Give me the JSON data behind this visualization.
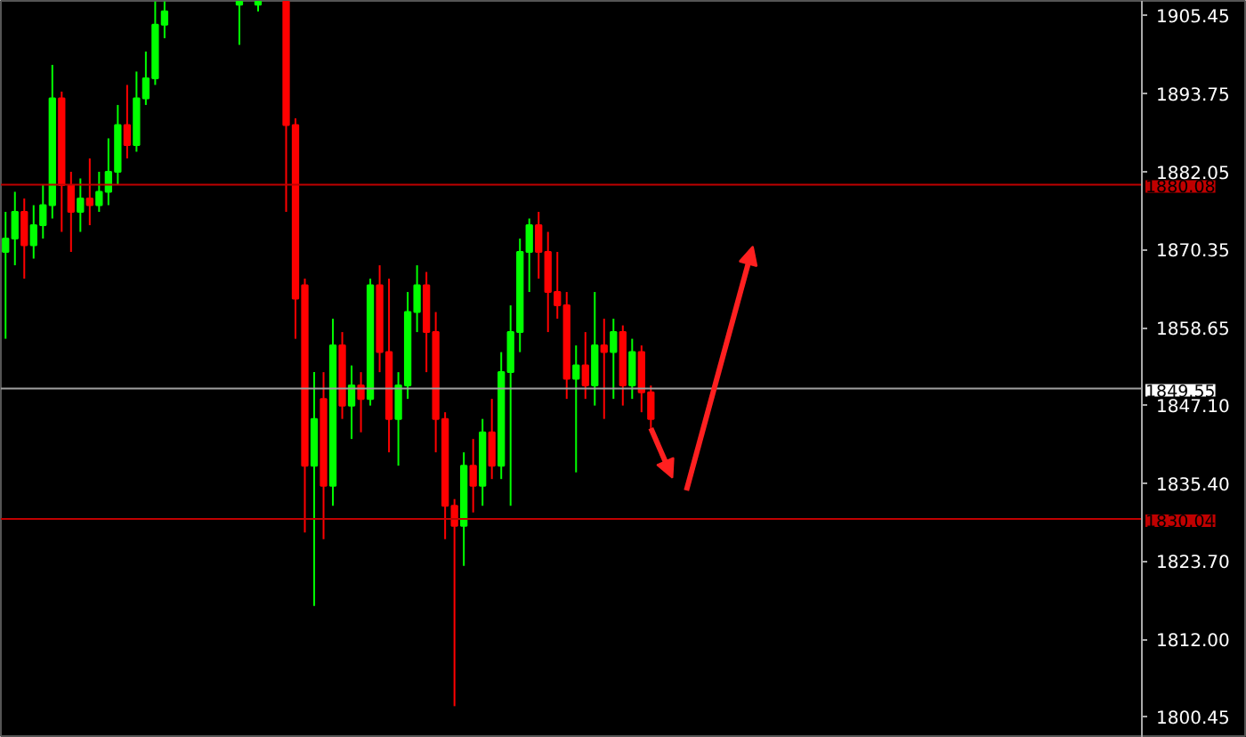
{
  "chart_data": {
    "type": "candlestick",
    "categories": [
      null,
      null,
      null,
      null,
      null,
      null,
      null,
      null,
      null,
      null,
      null,
      null,
      null,
      null,
      null,
      null,
      null,
      null,
      null,
      null,
      null,
      null,
      null,
      null,
      null,
      null,
      null,
      null,
      null,
      null,
      null,
      null,
      null,
      null,
      null,
      null,
      null,
      null,
      null,
      null,
      null,
      null,
      null,
      null,
      null,
      null,
      null,
      null,
      null,
      null,
      null,
      null,
      null,
      null,
      null,
      null,
      null,
      null,
      null,
      null,
      null,
      null,
      null,
      null,
      null,
      null,
      null,
      null,
      null,
      null,
      null,
      null,
      null,
      null,
      null,
      null,
      null,
      null,
      null,
      null,
      null,
      null,
      null,
      null,
      null,
      null,
      null,
      null,
      null,
      null,
      null,
      null,
      null,
      null,
      null,
      null,
      null,
      null,
      null,
      null,
      null,
      null,
      null,
      null,
      null,
      null,
      null,
      null,
      null,
      null,
      null,
      null,
      null,
      null,
      null,
      null,
      null,
      null,
      null,
      null,
      null,
      null
    ],
    "ohlc": [
      [
        1870,
        1876,
        1857,
        1872
      ],
      [
        1872,
        1879,
        1868,
        1876
      ],
      [
        1876,
        1878,
        1866,
        1871
      ],
      [
        1871,
        1877,
        1869,
        1874
      ],
      [
        1874,
        1880,
        1872,
        1877
      ],
      [
        1877,
        1898,
        1875,
        1893
      ],
      [
        1893,
        1894,
        1873,
        1880
      ],
      [
        1880,
        1882,
        1870,
        1876
      ],
      [
        1876,
        1881,
        1873,
        1878
      ],
      [
        1878,
        1884,
        1874,
        1877
      ],
      [
        1877,
        1882,
        1876,
        1879
      ],
      [
        1879,
        1887,
        1877,
        1882
      ],
      [
        1882,
        1892,
        1880,
        1889
      ],
      [
        1889,
        1895,
        1884,
        1886
      ],
      [
        1886,
        1897,
        1885,
        1893
      ],
      [
        1893,
        1900,
        1892,
        1896
      ],
      [
        1896,
        1907.5,
        1895,
        1904
      ],
      [
        1904,
        1907.5,
        1902,
        1906
      ],
      null,
      null,
      null,
      null,
      null,
      null,
      null,
      [
        1907,
        1907.5,
        1901,
        1907.5
      ],
      null,
      [
        1907,
        1907.5,
        1906,
        1907.5
      ],
      null,
      null,
      [
        1907.5,
        1907.5,
        1876,
        1889
      ],
      [
        1889,
        1890,
        1857,
        1863
      ],
      [
        1865,
        1866,
        1828,
        1838
      ],
      [
        1838,
        1852,
        1817,
        1845
      ],
      [
        1848,
        1852,
        1827,
        1835
      ],
      [
        1835,
        1860,
        1832,
        1856
      ],
      [
        1856,
        1858,
        1845,
        1847
      ],
      [
        1847,
        1853,
        1842,
        1850
      ],
      [
        1850,
        1852,
        1843,
        1848
      ],
      [
        1848,
        1866,
        1847,
        1865
      ],
      [
        1865,
        1868,
        1852,
        1855
      ],
      [
        1855,
        1866,
        1840,
        1845
      ],
      [
        1845,
        1852,
        1838,
        1850
      ],
      [
        1850,
        1864,
        1848,
        1861
      ],
      [
        1861,
        1868,
        1858,
        1865
      ],
      [
        1865,
        1867,
        1852,
        1858
      ],
      [
        1858,
        1861,
        1840,
        1845
      ],
      [
        1845,
        1846,
        1827,
        1832
      ],
      [
        1832,
        1833,
        1802,
        1829
      ],
      [
        1829,
        1840,
        1823,
        1838
      ],
      [
        1838,
        1842,
        1831,
        1835
      ],
      [
        1835,
        1845,
        1832,
        1843
      ],
      [
        1843,
        1848,
        1836,
        1838
      ],
      [
        1838,
        1855,
        1836,
        1852
      ],
      [
        1852,
        1862,
        1832,
        1858
      ],
      [
        1858,
        1872,
        1855,
        1870
      ],
      [
        1870,
        1875,
        1864,
        1874
      ],
      [
        1874,
        1876,
        1866,
        1870
      ],
      [
        1870,
        1873,
        1858,
        1864
      ],
      [
        1864,
        1870,
        1860,
        1862
      ],
      [
        1862,
        1864,
        1848,
        1851
      ],
      [
        1851,
        1856,
        1837,
        1853
      ],
      [
        1853,
        1858,
        1848,
        1850
      ],
      [
        1850,
        1864,
        1847,
        1856
      ],
      [
        1856,
        1860,
        1845,
        1855
      ],
      [
        1855,
        1860,
        1848,
        1858
      ],
      [
        1858,
        1859,
        1847,
        1850
      ],
      [
        1850,
        1857,
        1848,
        1855
      ],
      [
        1855,
        1856,
        1846,
        1849
      ],
      [
        1849,
        1850,
        1843,
        1845
      ],
      null,
      null,
      null,
      null,
      null,
      null,
      null,
      null,
      null,
      null,
      null,
      null,
      null,
      null,
      null,
      null,
      null,
      null,
      null,
      null,
      null,
      null,
      null,
      null,
      null,
      null,
      null,
      null,
      null,
      null,
      null,
      null,
      null,
      null,
      null,
      null,
      null,
      null,
      null,
      null,
      null,
      null,
      null,
      null,
      null,
      null,
      null,
      null,
      null,
      null,
      null,
      null
    ],
    "colors": [
      "#00ff00",
      "#00ff00",
      "#ff0000",
      "#00ff00",
      "#00ff00",
      "#00ff00",
      "#ff0000",
      "#ff0000",
      "#00ff00",
      "#ff0000",
      "#00ff00",
      "#00ff00",
      "#00ff00",
      "#ff0000",
      "#00ff00",
      "#00ff00",
      "#00ff00",
      "#00ff00",
      null,
      null,
      null,
      null,
      null,
      null,
      null,
      "#00ff00",
      null,
      "#00ff00",
      null,
      null,
      "#ff0000",
      "#ff0000",
      "#ff0000",
      "#00ff00",
      "#ff0000",
      "#00ff00",
      "#ff0000",
      "#00ff00",
      "#ff0000",
      "#00ff00",
      "#ff0000",
      "#ff0000",
      "#00ff00",
      "#00ff00",
      "#00ff00",
      "#ff0000",
      "#ff0000",
      "#ff0000",
      "#ff0000",
      "#00ff00",
      "#ff0000",
      "#00ff00",
      "#ff0000",
      "#00ff00",
      "#00ff00",
      "#00ff00",
      "#00ff00",
      "#ff0000",
      "#ff0000",
      "#ff0000",
      "#ff0000",
      "#00ff00",
      "#ff0000",
      "#00ff00",
      "#ff0000",
      "#00ff00",
      "#ff0000",
      "#00ff00",
      "#ff0000",
      "#ff0000",
      null,
      null,
      null,
      null,
      null,
      null,
      null,
      null,
      null,
      null,
      null,
      null,
      null,
      null,
      null,
      null,
      null,
      null,
      null,
      null,
      null,
      null,
      null,
      null,
      null,
      null,
      null,
      null,
      null,
      null,
      null,
      null,
      null,
      null,
      null,
      null,
      null,
      null,
      null,
      null,
      null,
      null,
      null,
      null,
      null,
      null,
      null,
      null,
      null,
      null,
      null,
      null
    ],
    "ylim": [
      1797.25,
      1907.58
    ],
    "yticks": [
      1905.45,
      1893.75,
      1882.05,
      1870.35,
      1858.65,
      {
        "value": 1847.1,
        "label": "1847.10"
      },
      {
        "value": 1835.4,
        "label": "1835.40"
      },
      {
        "value": 1823.7,
        "label": "1823.70"
      },
      {
        "value": 1812.0,
        "label": "1812.00"
      },
      1800.45
    ],
    "ref_lines": [
      {
        "axis": "y",
        "value": 1880.08,
        "label": "1880.08",
        "color": "#c00000"
      },
      {
        "axis": "y",
        "value": 1849.55,
        "label": "1849.55",
        "color": "#a0a0a0"
      },
      {
        "axis": "y",
        "value": 1830.04,
        "label": "1830.04",
        "color": "#c00000"
      }
    ],
    "grid": false
  }
}
